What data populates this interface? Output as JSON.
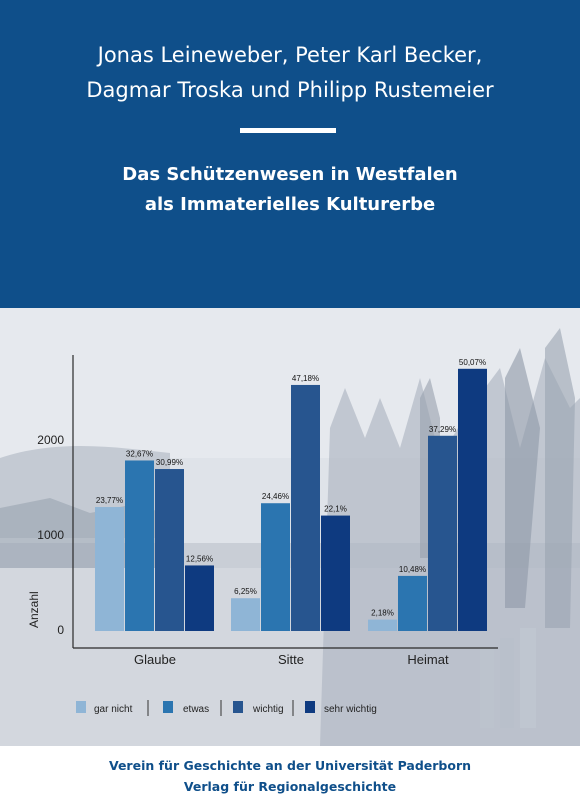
{
  "authors": {
    "line1": "Jonas Leineweber, Peter Karl Becker,",
    "line2": "Dagmar Troska und Philipp Rustemeier"
  },
  "title": {
    "line1": "Das Schützenwesen in Westfalen",
    "line2": "als Immaterielles Kulturerbe"
  },
  "publisher": {
    "line1": "Verein für Geschichte an der Universität Paderborn",
    "line2": "Verlag für Regionalgeschichte"
  },
  "colors": {
    "header_bg": "#0f4f8a",
    "gar_nicht": "#8fb5d6",
    "etwas": "#2b75b0",
    "wichtig": "#27558f",
    "sehr_wichtig": "#0e3a80"
  },
  "chart_data": {
    "type": "bar",
    "categories": [
      "Glaube",
      "Sitte",
      "Heimat"
    ],
    "ylabel": "Anzahl",
    "yticks": [
      "0",
      "1000",
      "2000"
    ],
    "ylim": [
      0,
      2800
    ],
    "legend_position": "bottom",
    "series": [
      {
        "name": "gar nicht",
        "values": [
          1305,
          345,
          120
        ],
        "labels": [
          "23,77%",
          "6,25%",
          "2,18%"
        ]
      },
      {
        "name": "etwas",
        "values": [
          1795,
          1345,
          580
        ],
        "labels": [
          "32,67%",
          "24,46%",
          "10,48%"
        ]
      },
      {
        "name": "wichtig",
        "values": [
          1705,
          2590,
          2055
        ],
        "labels": [
          "30,99%",
          "47,18%",
          "37,29%"
        ]
      },
      {
        "name": "sehr wichtig",
        "values": [
          690,
          1215,
          2760
        ],
        "labels": [
          "12,56%",
          "22,1%",
          "50,07%"
        ]
      }
    ]
  }
}
